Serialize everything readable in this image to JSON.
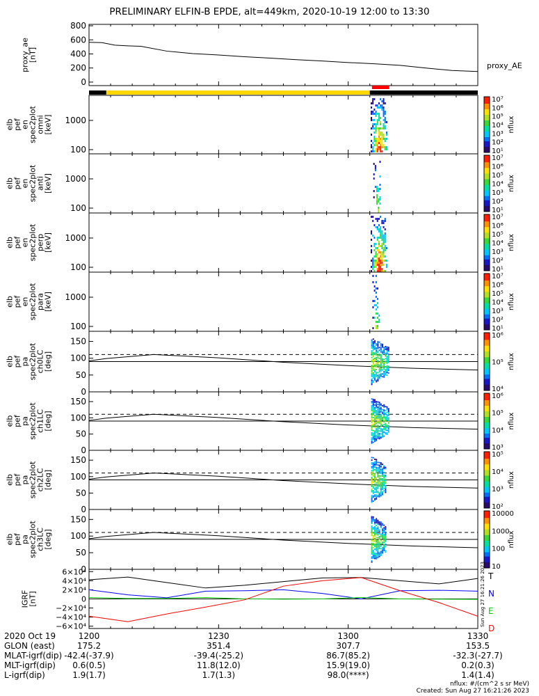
{
  "title": "PRELIMINARY ELFIN-B EPDE, alt=449km, 2020-10-19 12:00 to 13:30",
  "colors": {
    "state_bar_black": "#000000",
    "state_bar_yellow": "#ffd700",
    "state_bar_red": "#ff0000",
    "igrf_T": "#000000",
    "igrf_N": "#0000ff",
    "igrf_E": "#00d000",
    "igrf_D": "#ff0000"
  },
  "chart_data": [
    {
      "type": "line",
      "panel": "proxy_ae",
      "ylabel": [
        "proxy_ae",
        "[nT]"
      ],
      "legend": "proxy_AE",
      "yticks": [
        "800",
        "600",
        "400",
        "200",
        "0"
      ],
      "ylim": [
        -50,
        820
      ],
      "x": [
        0,
        3,
        6,
        9,
        12,
        18,
        24,
        30,
        36,
        42,
        48,
        54,
        60,
        66,
        72,
        78,
        84,
        90
      ],
      "y": [
        565,
        560,
        525,
        515,
        508,
        440,
        405,
        385,
        360,
        340,
        318,
        300,
        278,
        260,
        238,
        200,
        165,
        150
      ]
    },
    {
      "type": "bar",
      "panel": "state_bar",
      "segments": [
        {
          "color": "black",
          "from": 0,
          "to": 4
        },
        {
          "color": "yellow",
          "from": 4,
          "to": 65
        },
        {
          "color": "black",
          "from": 65,
          "to": 90
        },
        {
          "color": "red",
          "from": 65.5,
          "to": 69.5
        }
      ]
    },
    {
      "type": "heatmap",
      "panel": "omni",
      "ylabel": [
        "elb",
        "pef",
        "en",
        "spec2plot",
        "omni",
        "[keV]"
      ],
      "yticks": [
        "1000",
        "100"
      ],
      "colorbar": {
        "ticks": [
          "10⁷",
          "10⁶",
          "10⁵",
          "10⁴",
          "10³",
          "10²",
          "10¹"
        ],
        "label": "nflux"
      },
      "time_range": [
        65.2,
        69.2
      ],
      "intensity": "high"
    },
    {
      "type": "heatmap",
      "panel": "anti",
      "ylabel": [
        "elb",
        "pef",
        "en",
        "spec2plot",
        "anti",
        "[keV]"
      ],
      "yticks": [
        "1000",
        "100"
      ],
      "colorbar": {
        "ticks": [
          "10⁷",
          "10⁶",
          "10⁵",
          "10⁴",
          "10³",
          "10²",
          "10¹"
        ],
        "label": "nflux"
      },
      "time_range": [
        65.8,
        67.6
      ],
      "intensity": "low"
    },
    {
      "type": "heatmap",
      "panel": "perp",
      "ylabel": [
        "elb",
        "pef",
        "en",
        "spec2plot",
        "perp",
        "[keV]"
      ],
      "yticks": [
        "1000",
        "100"
      ],
      "colorbar": {
        "ticks": [
          "10⁷",
          "10⁶",
          "10⁵",
          "10⁴",
          "10³",
          "10²",
          "10¹"
        ],
        "label": "nflux"
      },
      "time_range": [
        65.2,
        69.2
      ],
      "intensity": "high"
    },
    {
      "type": "heatmap",
      "panel": "para",
      "ylabel": [
        "elb",
        "pef",
        "en",
        "spec2plot",
        "para",
        "[keV]"
      ],
      "yticks": [
        "1000",
        "100"
      ],
      "colorbar": {
        "ticks": [
          "10⁷",
          "10⁶",
          "10⁵",
          "10⁴",
          "10³",
          "10²",
          "10¹"
        ],
        "label": "nflux"
      },
      "time_range": [
        65.6,
        67.4
      ],
      "intensity": "low"
    },
    {
      "type": "heatmap",
      "panel": "ch0LC",
      "ylabel": [
        "elb",
        "pef",
        "pa",
        "spec2plot",
        "ch0LC",
        "[deg]"
      ],
      "yticks": [
        "150",
        "100",
        "50",
        "0"
      ],
      "ylim": [
        0,
        180
      ],
      "lc_lines": {
        "x": [
          0,
          4,
          15,
          30,
          45,
          60,
          75,
          90
        ],
        "solid_y": [
          92,
          99,
          111,
          101,
          88,
          78,
          70,
          65
        ],
        "dashed_y": 111
      },
      "colorbar": {
        "ticks": [
          "10⁶",
          "10⁵",
          "10⁴"
        ],
        "label": "nflux"
      },
      "time_range": [
        65.3,
        69.2
      ]
    },
    {
      "type": "heatmap",
      "panel": "ch1LC",
      "ylabel": [
        "elb",
        "pef",
        "pa",
        "spec2plot",
        "ch1LC",
        "[deg]"
      ],
      "yticks": [
        "150",
        "100",
        "50",
        "0"
      ],
      "ylim": [
        0,
        180
      ],
      "lc_lines": {
        "x": [
          0,
          4,
          15,
          30,
          45,
          60,
          75,
          90
        ],
        "solid_y": [
          92,
          99,
          111,
          101,
          88,
          78,
          70,
          65
        ],
        "dashed_y": 111
      },
      "colorbar": {
        "ticks": [
          "10⁶",
          "10⁵",
          "10⁴",
          "10³"
        ],
        "label": "nflux"
      },
      "time_range": [
        65.3,
        69.2
      ]
    },
    {
      "type": "heatmap",
      "panel": "ch2LC",
      "ylabel": [
        "elb",
        "pef",
        "pa",
        "spec2plot",
        "ch2LC",
        "[deg]"
      ],
      "yticks": [
        "150",
        "100",
        "50",
        "0"
      ],
      "ylim": [
        0,
        180
      ],
      "lc_lines": {
        "x": [
          0,
          4,
          15,
          30,
          45,
          60,
          75,
          90
        ],
        "solid_y": [
          92,
          99,
          111,
          101,
          88,
          78,
          70,
          65
        ],
        "dashed_y": 111
      },
      "colorbar": {
        "ticks": [
          "10⁵",
          "10⁴",
          "10³",
          "10²"
        ],
        "label": "nflux"
      },
      "time_range": [
        65.3,
        68.5
      ]
    },
    {
      "type": "heatmap",
      "panel": "ch3LC",
      "ylabel": [
        "elb",
        "pef",
        "pa",
        "spec2plot",
        "ch3LC",
        "[deg]"
      ],
      "yticks": [
        "150",
        "100",
        "50",
        "0"
      ],
      "ylim": [
        0,
        180
      ],
      "lc_lines": {
        "x": [
          0,
          4,
          15,
          30,
          45,
          60,
          75,
          90
        ],
        "solid_y": [
          92,
          99,
          111,
          101,
          88,
          78,
          70,
          65
        ],
        "dashed_y": 111
      },
      "colorbar": {
        "ticks": [
          "10000",
          "1000",
          "100",
          "10"
        ],
        "label": "nflux"
      },
      "time_range": [
        65.3,
        68.5
      ]
    },
    {
      "type": "line",
      "panel": "igrf",
      "ylabel": [
        "IGRF",
        "[nT]"
      ],
      "yticks": [
        "6×10⁴",
        "4×10⁴",
        "2×10⁴",
        "0",
        "−2×10⁴",
        "−4×10⁴",
        "−6×10⁴"
      ],
      "ylim": [
        -65000,
        65000
      ],
      "x": [
        0,
        9,
        18,
        27,
        36,
        45,
        54,
        63,
        72,
        81,
        90
      ],
      "series": [
        {
          "name": "T",
          "color": "#000000",
          "values": [
            42000,
            48000,
            36000,
            24000,
            30000,
            38000,
            46000,
            47000,
            40000,
            33000,
            45000
          ]
        },
        {
          "name": "N",
          "color": "#0000ff",
          "values": [
            20000,
            9000,
            2500,
            17000,
            18000,
            20000,
            12000,
            0,
            18000,
            19000,
            17000
          ]
        },
        {
          "name": "E",
          "color": "#00d000",
          "values": [
            3000,
            1000,
            1000,
            3000,
            0,
            -500,
            0,
            3000,
            0,
            -500,
            -1000
          ]
        },
        {
          "name": "D",
          "color": "#ff0000",
          "values": [
            -38000,
            -50000,
            -33000,
            -18000,
            -2000,
            28000,
            40000,
            47000,
            18000,
            -8000,
            -38000
          ]
        }
      ],
      "legend": [
        "T",
        "N",
        "E",
        "D"
      ],
      "stamp": "Sun Aug 27 16:21:26 2023"
    }
  ],
  "footer": {
    "rows": [
      [
        "2020 Oct 19",
        "1200",
        "1230",
        "1300",
        "1330"
      ],
      [
        "GLON (east)",
        "175.2",
        "351.4",
        "307.7",
        "153.5"
      ],
      [
        "MLAT-igrf(dip)",
        "-42.4(-37.9)",
        "-39.4(-25.2)",
        "86.7(85.2)",
        "-32.3(-27.7)"
      ],
      [
        "MLT-igrf(dip)",
        "0.6(0.5)",
        "11.8(12.0)",
        "15.9(19.0)",
        "0.2(0.3)"
      ],
      [
        "L-igrf(dip)",
        "1.9(1.7)",
        "1.7(1.3)",
        "98.0(****)",
        "1.4(1.4)"
      ]
    ],
    "units_note": "nflux: #/(cm^2 s sr MeV)",
    "created": "Created: Sun Aug 27 16:21:26 2023"
  }
}
